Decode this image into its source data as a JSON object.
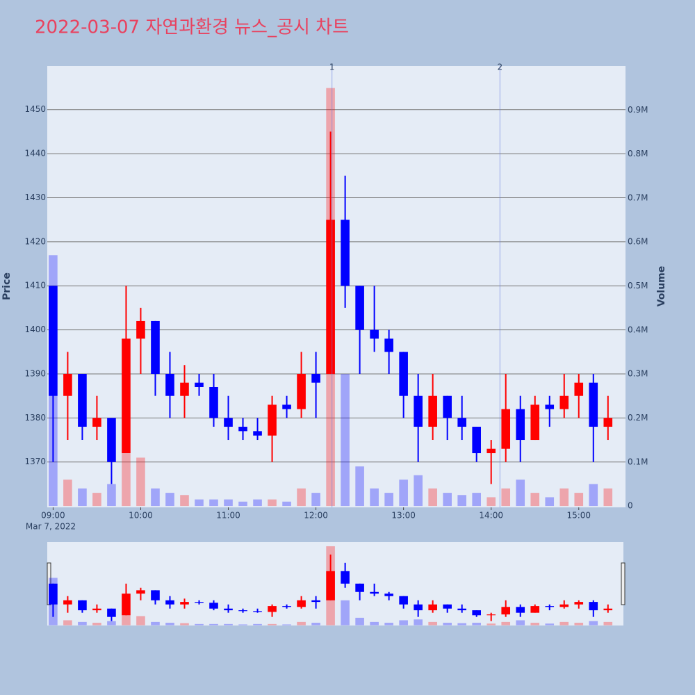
{
  "chart_data": {
    "type": "candlestick",
    "title": "2022-03-07 자연과환경 뉴스_공시 차트",
    "x": [
      "2022-03-07 09:00",
      "2022-03-07 09:10",
      "2022-03-07 09:20",
      "2022-03-07 09:30",
      "2022-03-07 09:40",
      "2022-03-07 09:50",
      "2022-03-07 10:00",
      "2022-03-07 10:10",
      "2022-03-07 10:20",
      "2022-03-07 10:30",
      "2022-03-07 10:40",
      "2022-03-07 10:50",
      "2022-03-07 11:00",
      "2022-03-07 11:10",
      "2022-03-07 11:20",
      "2022-03-07 11:30",
      "2022-03-07 11:40",
      "2022-03-07 11:50",
      "2022-03-07 12:00",
      "2022-03-07 12:10",
      "2022-03-07 12:20",
      "2022-03-07 12:30",
      "2022-03-07 12:40",
      "2022-03-07 12:50",
      "2022-03-07 13:00",
      "2022-03-07 13:10",
      "2022-03-07 13:20",
      "2022-03-07 13:30",
      "2022-03-07 13:40",
      "2022-03-07 13:50",
      "2022-03-07 14:00",
      "2022-03-07 14:10",
      "2022-03-07 14:20",
      "2022-03-07 14:30",
      "2022-03-07 14:40",
      "2022-03-07 14:50",
      "2022-03-07 15:00",
      "2022-03-07 15:10",
      "2022-03-07 15:20"
    ],
    "open": [
      1410,
      1385,
      1390,
      1378,
      1380,
      1372,
      1398,
      1402,
      1390,
      1385,
      1388,
      1387,
      1380,
      1378,
      1377,
      1376,
      1383,
      1382,
      1390,
      1390,
      1425,
      1410,
      1400,
      1398,
      1395,
      1385,
      1378,
      1385,
      1380,
      1378,
      1372,
      1373,
      1382,
      1375,
      1383,
      1382,
      1385,
      1388,
      1378
    ],
    "high": [
      1410,
      1395,
      1390,
      1385,
      1380,
      1410,
      1405,
      1402,
      1395,
      1392,
      1390,
      1390,
      1385,
      1380,
      1380,
      1385,
      1385,
      1395,
      1395,
      1445,
      1435,
      1410,
      1410,
      1400,
      1395,
      1390,
      1390,
      1385,
      1385,
      1378,
      1375,
      1390,
      1385,
      1385,
      1385,
      1390,
      1390,
      1390,
      1385
    ],
    "low": [
      1370,
      1375,
      1375,
      1375,
      1365,
      1372,
      1390,
      1385,
      1380,
      1380,
      1385,
      1378,
      1375,
      1375,
      1375,
      1370,
      1380,
      1380,
      1380,
      1390,
      1405,
      1390,
      1395,
      1390,
      1380,
      1370,
      1375,
      1375,
      1375,
      1370,
      1365,
      1370,
      1370,
      1375,
      1378,
      1380,
      1380,
      1370,
      1375
    ],
    "close": [
      1385,
      1390,
      1378,
      1380,
      1370,
      1398,
      1402,
      1390,
      1385,
      1388,
      1387,
      1380,
      1378,
      1377,
      1376,
      1383,
      1382,
      1390,
      1388,
      1425,
      1410,
      1400,
      1398,
      1395,
      1385,
      1378,
      1385,
      1380,
      1378,
      1372,
      1373,
      1382,
      1375,
      1383,
      1382,
      1385,
      1388,
      1378,
      1380
    ],
    "volume": [
      570000,
      60000,
      40000,
      30000,
      50000,
      120000,
      110000,
      40000,
      30000,
      25000,
      15000,
      15000,
      15000,
      10000,
      15000,
      15000,
      10000,
      40000,
      30000,
      950000,
      300000,
      90000,
      40000,
      30000,
      60000,
      70000,
      40000,
      30000,
      25000,
      30000,
      20000,
      40000,
      60000,
      30000,
      20000,
      40000,
      30000,
      50000,
      40000
    ],
    "increasing_color": "#ff0000",
    "decreasing_color": "#0000ff",
    "xlim": [
      "2022-03-07 08:56",
      "2022-03-07 15:32"
    ],
    "xticks": [
      {
        "value": "2022-03-07 09:00",
        "label": "09:00"
      },
      {
        "value": "2022-03-07 10:00",
        "label": "10:00"
      },
      {
        "value": "2022-03-07 11:00",
        "label": "11:00"
      },
      {
        "value": "2022-03-07 12:00",
        "label": "12:00"
      },
      {
        "value": "2022-03-07 13:00",
        "label": "13:00"
      },
      {
        "value": "2022-03-07 14:00",
        "label": "14:00"
      },
      {
        "value": "2022-03-07 15:00",
        "label": "15:00"
      }
    ],
    "x_date_label": "Mar 7, 2022",
    "ylim": [
      1359.7,
      1459.9
    ],
    "yticks": [
      1370,
      1380,
      1390,
      1400,
      1410,
      1420,
      1430,
      1440,
      1450
    ],
    "y2lim": [
      -3000,
      1000000
    ],
    "y2ticks": [
      0,
      {
        "value": 100000,
        "label": "0.1M"
      },
      {
        "value": 200000,
        "label": "0.2M"
      },
      {
        "value": 300000,
        "label": "0.3M"
      },
      {
        "value": 400000,
        "label": "0.4M"
      },
      {
        "value": 500000,
        "label": "0.5M"
      },
      {
        "value": 600000,
        "label": "0.6M"
      },
      {
        "value": 700000,
        "label": "0.7M"
      },
      {
        "value": 800000,
        "label": "0.8M"
      },
      {
        "value": 900000,
        "label": "0.9M"
      }
    ],
    "y_title": "Price",
    "y2_title": "Volume",
    "annotations": [
      {
        "x": "2022-03-07 12:11",
        "text": "1"
      },
      {
        "x": "2022-03-07 14:06",
        "text": "2"
      }
    ],
    "grid": true
  }
}
